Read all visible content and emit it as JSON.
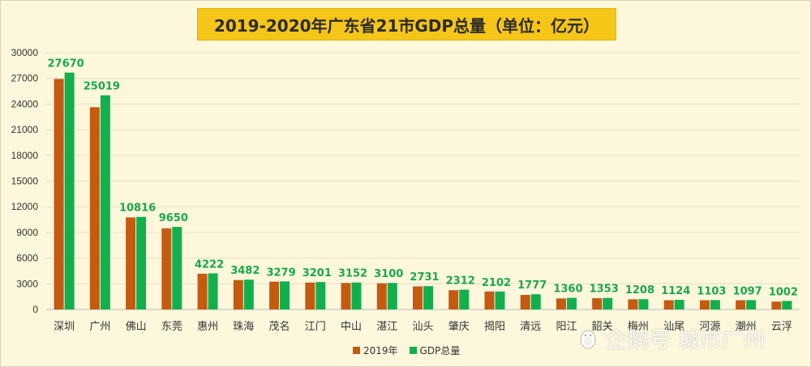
{
  "title": "2019-2020年广东省21市GDP总量（单位：亿元）",
  "watermark": {
    "text": "企鹅号 城市广州",
    "icon": "penguin-logo-icon"
  },
  "colors": {
    "series_2019": "#c55a11",
    "series_2020": "#12b04d",
    "label": "#19a84a",
    "title_bg": "#f5c518",
    "background": "#fdf7dc"
  },
  "chart_data": {
    "type": "bar",
    "title": "2019-2020年广东省21市GDP总量（单位：亿元）",
    "xlabel": "",
    "ylabel": "",
    "ylim": [
      0,
      30000
    ],
    "yticks": [
      "0",
      "3000",
      "6000",
      "9000",
      "12000",
      "15000",
      "18000",
      "21000",
      "24000",
      "27000",
      "30000"
    ],
    "grid": true,
    "legend_position": "bottom",
    "categories": [
      "深圳",
      "广州",
      "佛山",
      "东莞",
      "惠州",
      "珠海",
      "茂名",
      "江门",
      "中山",
      "湛江",
      "汕头",
      "肇庆",
      "揭阳",
      "清远",
      "阳江",
      "韶关",
      "梅州",
      "汕尾",
      "河源",
      "潮州",
      "云浮"
    ],
    "series": [
      {
        "name": "2019年",
        "values": [
          26927,
          23629,
          10751,
          9482,
          4177,
          3436,
          3252,
          3146,
          3101,
          3064,
          2694,
          2249,
          2101,
          1698,
          1292,
          1318,
          1187,
          1080,
          1080,
          1080,
          921
        ]
      },
      {
        "name": "GDP总量",
        "values": [
          27670,
          25019,
          10816,
          9650,
          4222,
          3482,
          3279,
          3201,
          3152,
          3100,
          2731,
          2312,
          2102,
          1777,
          1360,
          1353,
          1208,
          1124,
          1103,
          1097,
          1002
        ]
      }
    ],
    "data_labels": [
      "27670",
      "25019",
      "10816",
      "9650",
      "4222",
      "3482",
      "3279",
      "3201",
      "3152",
      "3100",
      "2731",
      "2312",
      "2102",
      "1777",
      "1360",
      "1353",
      "1208",
      "1124",
      "1103",
      "1097",
      "1002"
    ]
  }
}
